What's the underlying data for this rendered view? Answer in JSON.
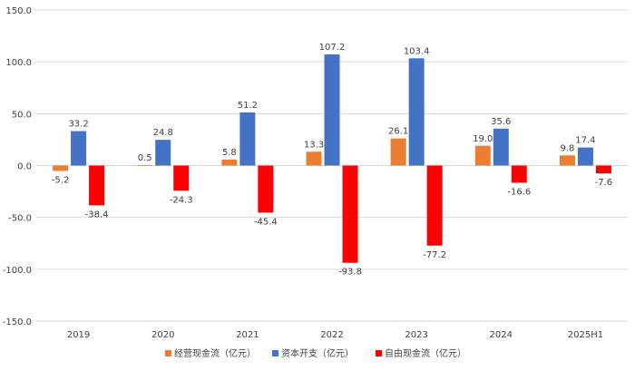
{
  "chart_data": {
    "type": "bar",
    "categories": [
      "2019",
      "2020",
      "2021",
      "2022",
      "2023",
      "2024",
      "2025H1"
    ],
    "series": [
      {
        "name": "经营现金流（亿元）",
        "color": "#ED7D31",
        "values": [
          -5.2,
          0.5,
          5.8,
          13.3,
          26.1,
          19.0,
          9.8
        ]
      },
      {
        "name": "资本开支（亿元）",
        "color": "#4472C4",
        "values": [
          33.2,
          24.8,
          51.2,
          107.2,
          103.4,
          35.6,
          17.4
        ]
      },
      {
        "name": "自由现金流（亿元）",
        "color": "#FF0000",
        "values": [
          -38.4,
          -24.3,
          -45.4,
          -93.8,
          -77.2,
          -16.6,
          -7.6
        ]
      }
    ],
    "ylim": [
      -150,
      150
    ],
    "yticks": [
      "150.0",
      "100.0",
      "50.0",
      "0.0",
      "-50.0",
      "-100.0",
      "-150.0"
    ],
    "grid": true,
    "legend": "bottom"
  }
}
